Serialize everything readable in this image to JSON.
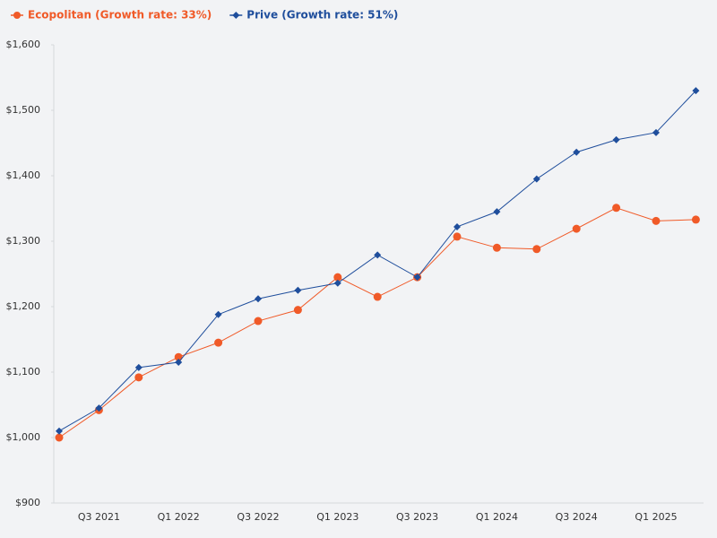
{
  "chart_data": {
    "type": "line",
    "categories": [
      null,
      "Q3 2021",
      null,
      "Q1 2022",
      null,
      "Q3 2022",
      null,
      "Q1 2023",
      null,
      "Q3 2023",
      null,
      "Q1 2024",
      null,
      "Q3 2024",
      null,
      "Q1 2025",
      null
    ],
    "series": [
      {
        "name": "Ecopolitan (Growth rate: 33%)",
        "color": "#f05a28",
        "marker": "circle",
        "values": [
          1000,
          1042,
          1092,
          1123,
          1145,
          1178,
          1195,
          1245,
          1215,
          1245,
          1307,
          1290,
          1288,
          1319,
          1351,
          1331,
          1333
        ]
      },
      {
        "name": "Prive (Growth rate: 51%)",
        "color": "#1f4e9c",
        "marker": "diamond",
        "values": [
          1010,
          1045,
          1107,
          1115,
          1188,
          1212,
          1225,
          1236,
          1279,
          1245,
          1322,
          1345,
          1395,
          1436,
          1455,
          1466,
          1530
        ]
      }
    ],
    "ylim": [
      900,
      1600
    ],
    "yticks": [
      {
        "value": 900,
        "label": "$900"
      },
      {
        "value": 1000,
        "label": "$1,000"
      },
      {
        "value": 1100,
        "label": "$1,100"
      },
      {
        "value": 1200,
        "label": "$1,200"
      },
      {
        "value": 1300,
        "label": "$1,300"
      },
      {
        "value": 1400,
        "label": "$1,400"
      },
      {
        "value": 1500,
        "label": "$1,500"
      },
      {
        "value": 1600,
        "label": "$1,600"
      }
    ],
    "grid": false
  }
}
